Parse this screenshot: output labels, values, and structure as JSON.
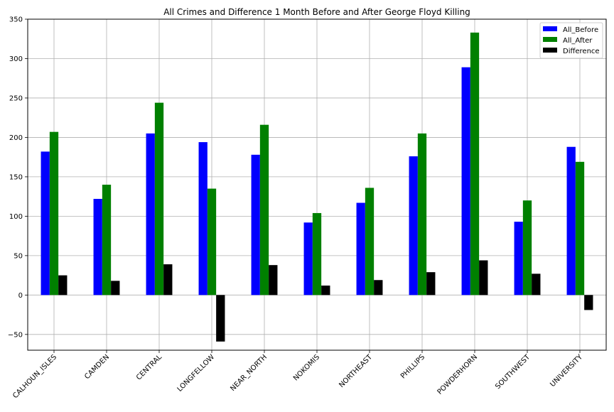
{
  "chart_data": {
    "type": "bar",
    "title": "All Crimes and Difference 1 Month Before and After George Floyd Killing",
    "xlabel": "",
    "ylabel": "",
    "categories": [
      "CALHOUN_ISLES",
      "CAMDEN",
      "CENTRAL",
      "LONGFELLOW",
      "NEAR_NORTH",
      "NOKOMIS",
      "NORTHEAST",
      "PHILLIPS",
      "POWDERHORN",
      "SOUTHWEST",
      "UNIVERSITY"
    ],
    "series": [
      {
        "name": "All_Before",
        "color": "#0000ff",
        "values": [
          182,
          122,
          205,
          194,
          178,
          92,
          117,
          176,
          289,
          93,
          188
        ]
      },
      {
        "name": "All_After",
        "color": "#008000",
        "values": [
          207,
          140,
          244,
          135,
          216,
          104,
          136,
          205,
          333,
          120,
          169
        ]
      },
      {
        "name": "Difference",
        "color": "#000000",
        "values": [
          25,
          18,
          39,
          -59,
          38,
          12,
          19,
          29,
          44,
          27,
          -19
        ]
      }
    ],
    "ylim": [
      -70,
      350
    ],
    "yticks": [
      -50,
      0,
      50,
      100,
      150,
      200,
      250,
      300,
      350
    ],
    "ytick_labels": [
      "−50",
      "0",
      "50",
      "100",
      "150",
      "200",
      "250",
      "300",
      "350"
    ],
    "grid": true,
    "legend_position": "top-right"
  }
}
